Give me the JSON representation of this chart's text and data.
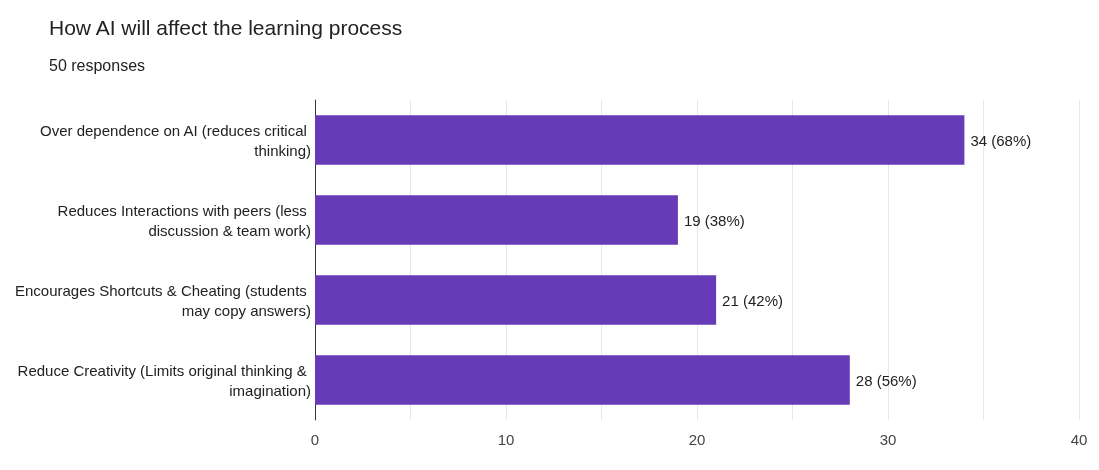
{
  "chart_data": {
    "type": "bar",
    "orientation": "horizontal",
    "title": "How AI will affect the learning process",
    "subtitle": "50 responses",
    "categories": [
      "Over dependence on AI (reduces critical thinking)",
      "Reduces Interactions with peers (less discussion & team work)",
      "Encourages Shortcuts & Cheating (students may copy answers)",
      "Reduce Creativity (Limits original thinking & imagination)"
    ],
    "values": [
      34,
      19,
      21,
      28
    ],
    "value_labels": [
      "34 (68%)",
      "19 (38%)",
      "21 (42%)",
      "28 (56%)"
    ],
    "color": "#673ab7",
    "xlim": [
      0,
      40
    ],
    "xticks": [
      0,
      {
        "value": 5,
        "label": null
      },
      10,
      {
        "value": 15,
        "label": null
      },
      20,
      {
        "value": 25,
        "label": null
      },
      30,
      {
        "value": 35,
        "label": null
      },
      40
    ],
    "grid": "x"
  }
}
